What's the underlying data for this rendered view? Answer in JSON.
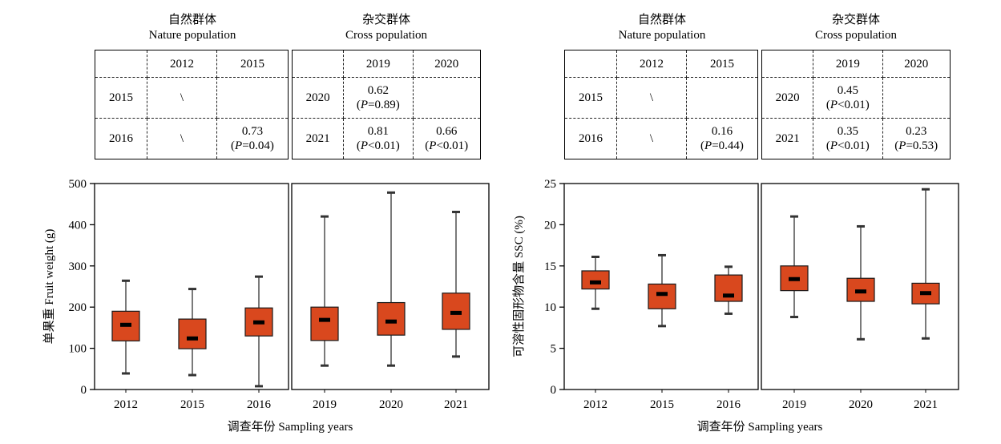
{
  "panels": [
    {
      "id": "fruit",
      "ylabel": "单果重 Fruit weight (g)",
      "xlabel": "调查年份 Sampling years",
      "group_titles": [
        {
          "zh": "自然群体",
          "en": "Nature population"
        },
        {
          "zh": "杂交群体",
          "en": "Cross population"
        }
      ],
      "table_nature": {
        "header": [
          "",
          "2012",
          "2015"
        ],
        "rows": [
          {
            "label": "2015",
            "cells": [
              {
                "r": "\\",
                "p": ""
              },
              {
                "r": "",
                "p": ""
              }
            ]
          },
          {
            "label": "2016",
            "cells": [
              {
                "r": "\\",
                "p": ""
              },
              {
                "r": "0.73",
                "p": "(P=0.04)"
              }
            ]
          }
        ]
      },
      "table_cross": {
        "header": [
          "",
          "2019",
          "2020"
        ],
        "rows": [
          {
            "label": "2020",
            "cells": [
              {
                "r": "0.62",
                "p": "(P=0.89)"
              },
              {
                "r": "",
                "p": ""
              }
            ]
          },
          {
            "label": "2021",
            "cells": [
              {
                "r": "0.81",
                "p": "(P<0.01)"
              },
              {
                "r": "0.66",
                "p": "(P<0.01)"
              }
            ]
          }
        ]
      }
    },
    {
      "id": "ssc",
      "ylabel": "可溶性固形物含量 SSC (%)",
      "xlabel": "调查年份 Sampling years",
      "group_titles": [
        {
          "zh": "自然群体",
          "en": "Nature population"
        },
        {
          "zh": "杂交群体",
          "en": "Cross population"
        }
      ],
      "table_nature": {
        "header": [
          "",
          "2012",
          "2015"
        ],
        "rows": [
          {
            "label": "2015",
            "cells": [
              {
                "r": "\\",
                "p": ""
              },
              {
                "r": "",
                "p": ""
              }
            ]
          },
          {
            "label": "2016",
            "cells": [
              {
                "r": "\\",
                "p": ""
              },
              {
                "r": "0.16",
                "p": "(P=0.44)"
              }
            ]
          }
        ]
      },
      "table_cross": {
        "header": [
          "",
          "2019",
          "2020"
        ],
        "rows": [
          {
            "label": "2020",
            "cells": [
              {
                "r": "0.45",
                "p": "(P<0.01)"
              },
              {
                "r": "",
                "p": ""
              }
            ]
          },
          {
            "label": "2021",
            "cells": [
              {
                "r": "0.35",
                "p": "(P<0.01)"
              },
              {
                "r": "0.23",
                "p": "(P=0.53)"
              }
            ]
          }
        ]
      }
    }
  ],
  "chart_data": [
    {
      "type": "box",
      "ylabel": "单果重 Fruit weight (g)",
      "xlabel": "调查年份 Sampling years",
      "categories": [
        "2012",
        "2015",
        "2016",
        "2019",
        "2020",
        "2021"
      ],
      "groups": [
        {
          "name": "自然群体 Nature population",
          "categories": [
            "2012",
            "2015",
            "2016"
          ]
        },
        {
          "name": "杂交群体 Cross population",
          "categories": [
            "2019",
            "2020",
            "2021"
          ]
        }
      ],
      "ylim": [
        0,
        500
      ],
      "yticks": [
        0,
        100,
        200,
        300,
        400,
        500
      ],
      "boxes": [
        {
          "min": 39,
          "q1": 118,
          "median": 157,
          "q3": 190,
          "max": 264
        },
        {
          "min": 35,
          "q1": 99,
          "median": 124,
          "q3": 171,
          "max": 244
        },
        {
          "min": 8,
          "q1": 130,
          "median": 163,
          "q3": 198,
          "max": 274
        },
        {
          "min": 58,
          "q1": 119,
          "median": 169,
          "q3": 200,
          "max": 420
        },
        {
          "min": 58,
          "q1": 132,
          "median": 165,
          "q3": 211,
          "max": 478
        },
        {
          "min": 80,
          "q1": 146,
          "median": 186,
          "q3": 234,
          "max": 431
        }
      ],
      "box_color": "#d9481e"
    },
    {
      "type": "box",
      "ylabel": "可溶性固形物含量 SSC (%)",
      "xlabel": "调查年份 Sampling years",
      "categories": [
        "2012",
        "2015",
        "2016",
        "2019",
        "2020",
        "2021"
      ],
      "groups": [
        {
          "name": "自然群体 Nature population",
          "categories": [
            "2012",
            "2015",
            "2016"
          ]
        },
        {
          "name": "杂交群体 Cross population",
          "categories": [
            "2019",
            "2020",
            "2021"
          ]
        }
      ],
      "ylim": [
        0,
        25
      ],
      "yticks": [
        0,
        5,
        10,
        15,
        20,
        25
      ],
      "boxes": [
        {
          "min": 9.8,
          "q1": 12.2,
          "median": 13.0,
          "q3": 14.4,
          "max": 16.1
        },
        {
          "min": 7.7,
          "q1": 9.8,
          "median": 11.6,
          "q3": 12.8,
          "max": 16.3
        },
        {
          "min": 9.2,
          "q1": 10.7,
          "median": 11.4,
          "q3": 13.9,
          "max": 14.9
        },
        {
          "min": 8.8,
          "q1": 12.0,
          "median": 13.4,
          "q3": 15.0,
          "max": 21.0
        },
        {
          "min": 6.1,
          "q1": 10.7,
          "median": 11.9,
          "q3": 13.5,
          "max": 19.8
        },
        {
          "min": 6.2,
          "q1": 10.4,
          "median": 11.7,
          "q3": 12.9,
          "max": 24.3
        }
      ],
      "box_color": "#d9481e"
    }
  ]
}
